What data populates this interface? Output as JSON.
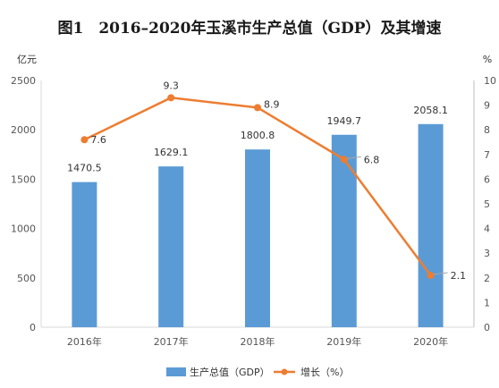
{
  "chart_data": {
    "type": "bar",
    "title": "图1　2016–2020年玉溪市生产总值（GDP）及其增速",
    "left_unit": "亿元",
    "right_unit": "%",
    "categories": [
      "2016年",
      "2017年",
      "2018年",
      "2019年",
      "2020年"
    ],
    "series": [
      {
        "name": "生产总值（GDP）",
        "type": "bar",
        "axis": "left",
        "color": "#5b9bd5",
        "values": [
          1470.5,
          1629.1,
          1800.8,
          1949.7,
          2058.1
        ],
        "labels": [
          "1470.5",
          "1629.1",
          "1800.8",
          "1949.7",
          "2058.1"
        ]
      },
      {
        "name": "增长（%）",
        "type": "line",
        "axis": "right",
        "color": "#ed7d31",
        "values": [
          7.6,
          9.3,
          8.9,
          6.8,
          2.1
        ],
        "labels": [
          "7.6",
          "9.3",
          "8.9",
          "6.8",
          "2.1"
        ]
      }
    ],
    "y_left": {
      "min": 0,
      "max": 2500,
      "ticks": [
        "0",
        "500",
        "1000",
        "1500",
        "2000",
        "2500"
      ]
    },
    "y_right": {
      "min": 0,
      "max": 10,
      "ticks": [
        "0",
        "1",
        "2",
        "3",
        "4",
        "5",
        "6",
        "7",
        "8",
        "9",
        "10"
      ]
    },
    "grid": false,
    "legend": "bottom",
    "colors": {
      "axis": "#d9d9d9",
      "right_axis": "#bfbfbf"
    }
  }
}
